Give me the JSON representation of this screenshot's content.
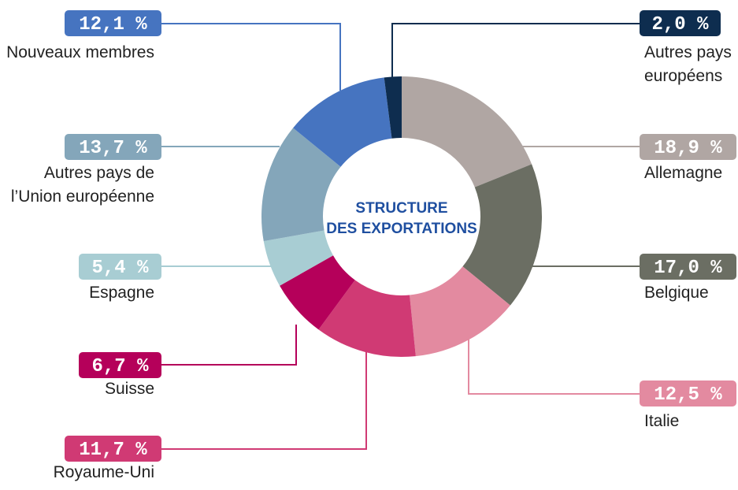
{
  "chart_data": {
    "type": "pie",
    "donut": true,
    "title": "STRUCTURE\nDES EXPORTATIONS",
    "categories": [
      "Allemagne",
      "Belgique",
      "Italie",
      "Royaume-Uni",
      "Suisse",
      "Espagne",
      "Autres pays de\nl’Union européenne",
      "Nouveaux membres",
      "Autres pays\neuropéens"
    ],
    "values": [
      18.9,
      17.0,
      12.5,
      11.7,
      6.7,
      5.4,
      13.7,
      12.1,
      2.0
    ],
    "value_labels": [
      "18,9 %",
      "17,0 %",
      "12,5 %",
      "11,7 %",
      "6,7 %",
      "5,4 %",
      "13,7 %",
      "12,1 %",
      "2,0 %"
    ],
    "colors": [
      "#b0a6a3",
      "#6b6e63",
      "#e38aa0",
      "#d03a74",
      "#b5005a",
      "#a8cdd3",
      "#84a6ba",
      "#4674c0",
      "#0e2d4f"
    ]
  }
}
